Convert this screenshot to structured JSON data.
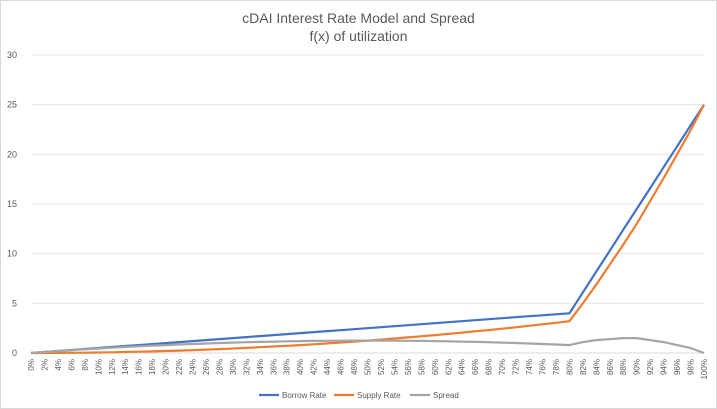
{
  "chart_data": {
    "type": "line",
    "title": "cDAI Interest Rate Model and Spread",
    "subtitle": "f(x) of utilization",
    "xlabel": "",
    "ylabel": "",
    "ylim": [
      0,
      30
    ],
    "yticks": [
      0,
      5,
      10,
      15,
      20,
      25,
      30
    ],
    "grid": true,
    "legend_position": "bottom",
    "categories": [
      "0%",
      "2%",
      "4%",
      "6%",
      "8%",
      "10%",
      "12%",
      "14%",
      "16%",
      "18%",
      "20%",
      "22%",
      "24%",
      "26%",
      "28%",
      "30%",
      "32%",
      "34%",
      "36%",
      "38%",
      "40%",
      "42%",
      "44%",
      "46%",
      "48%",
      "50%",
      "52%",
      "54%",
      "56%",
      "58%",
      "60%",
      "62%",
      "64%",
      "66%",
      "68%",
      "70%",
      "72%",
      "74%",
      "76%",
      "78%",
      "80%",
      "82%",
      "84%",
      "86%",
      "88%",
      "90%",
      "92%",
      "94%",
      "96%",
      "98%",
      "100%"
    ],
    "series": [
      {
        "name": "Borrow Rate",
        "color": "#4472c4",
        "values": [
          0,
          0.1,
          0.2,
          0.3,
          0.4,
          0.5,
          0.6,
          0.7,
          0.8,
          0.9,
          1.0,
          1.1,
          1.2,
          1.3,
          1.4,
          1.5,
          1.6,
          1.7,
          1.8,
          1.9,
          2.0,
          2.1,
          2.2,
          2.3,
          2.4,
          2.5,
          2.6,
          2.7,
          2.8,
          2.9,
          3.0,
          3.1,
          3.2,
          3.3,
          3.4,
          3.5,
          3.6,
          3.7,
          3.8,
          3.9,
          4.0,
          6.1,
          8.2,
          10.3,
          12.4,
          14.5,
          16.6,
          18.7,
          20.8,
          22.9,
          25.0
        ]
      },
      {
        "name": "Supply Rate",
        "color": "#ed7d31",
        "values": [
          0,
          0.0,
          0.01,
          0.02,
          0.03,
          0.05,
          0.07,
          0.1,
          0.13,
          0.16,
          0.2,
          0.24,
          0.29,
          0.34,
          0.39,
          0.45,
          0.51,
          0.58,
          0.65,
          0.72,
          0.8,
          0.88,
          0.97,
          1.06,
          1.15,
          1.25,
          1.35,
          1.46,
          1.57,
          1.68,
          1.8,
          1.92,
          2.05,
          2.18,
          2.31,
          2.45,
          2.59,
          2.74,
          2.89,
          3.04,
          3.2,
          5.0,
          6.9,
          8.9,
          10.9,
          13.0,
          15.3,
          17.6,
          20.0,
          22.4,
          25.0
        ]
      },
      {
        "name": "Spread",
        "color": "#a5a5a5",
        "values": [
          0,
          0.1,
          0.19,
          0.28,
          0.37,
          0.45,
          0.53,
          0.6,
          0.67,
          0.74,
          0.8,
          0.86,
          0.91,
          0.96,
          1.01,
          1.05,
          1.09,
          1.12,
          1.15,
          1.18,
          1.2,
          1.22,
          1.23,
          1.24,
          1.25,
          1.25,
          1.25,
          1.24,
          1.23,
          1.22,
          1.2,
          1.18,
          1.15,
          1.12,
          1.09,
          1.05,
          1.01,
          0.96,
          0.91,
          0.86,
          0.8,
          1.1,
          1.3,
          1.4,
          1.5,
          1.5,
          1.3,
          1.1,
          0.8,
          0.5,
          0.0
        ]
      }
    ]
  }
}
